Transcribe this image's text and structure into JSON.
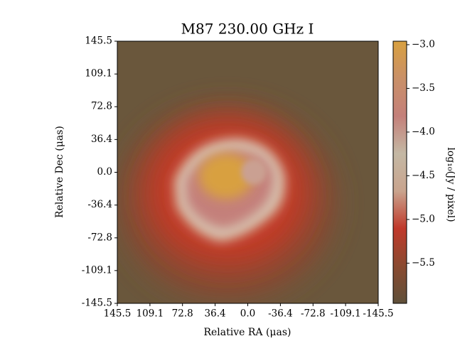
{
  "chart_data": {
    "type": "image",
    "title": "M87 230.00 GHz I",
    "xlabel": "Relative RA (μas)",
    "ylabel": "Relative Dec (μas)",
    "xlim": [
      145.5,
      -145.5
    ],
    "ylim": [
      -145.5,
      145.5
    ],
    "xticks": [
      145.5,
      109.1,
      72.8,
      36.4,
      {
        "value": 0,
        "label": "0.0"
      },
      -36.4,
      -72.8,
      -109.1,
      -145.5
    ],
    "yticks": [
      145.5,
      109.1,
      72.8,
      36.4,
      {
        "value": 0,
        "label": "0.0"
      },
      -36.4,
      -72.8,
      -109.1,
      -145.5
    ],
    "colorbar": {
      "label": "log₁₀(Jy / pixel)",
      "clim": [
        -5.96,
        -2.96
      ],
      "ticks": [
        {
          "value": -3.0,
          "label": "−3.0"
        },
        {
          "value": -3.5,
          "label": "−3.5"
        },
        {
          "value": -4.0,
          "label": "−4.0"
        },
        {
          "value": -4.5,
          "label": "−4.5"
        },
        {
          "value": -5.0,
          "label": "−5.0"
        },
        {
          "value": -5.5,
          "label": "−5.5"
        }
      ],
      "colormap": [
        "#5f503a",
        "#8a4a30",
        "#c0392b",
        "#c9a48e",
        "#c4b8a4",
        "#c4807a",
        "#c99068",
        "#d8a040"
      ]
    }
  }
}
